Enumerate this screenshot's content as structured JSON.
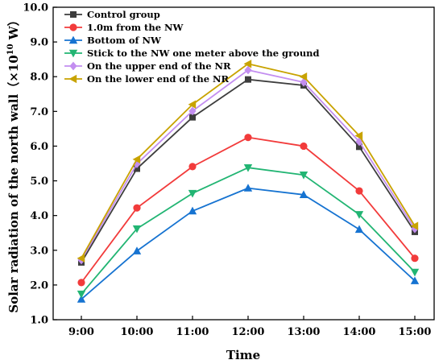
{
  "chart_data": {
    "type": "line",
    "xlabel": "Time",
    "ylabel_main": "Solar radiation of the north wall（×10",
    "ylabel_exp": "10",
    "ylabel_unit": " W）",
    "categories": [
      "9:00",
      "10:00",
      "11:00",
      "12:00",
      "13:00",
      "14:00",
      "15:00"
    ],
    "y_ticks": [
      "1.0",
      "2.0",
      "3.0",
      "4.0",
      "5.0",
      "6.0",
      "7.0",
      "8.0",
      "9.0",
      "10.0"
    ],
    "ylim": [
      1.0,
      10.0
    ],
    "grid": false,
    "legend_position": "top-left",
    "series": [
      {
        "name": "Control group",
        "color": "#3d3d3d",
        "marker": "square",
        "values": [
          2.65,
          5.35,
          6.83,
          7.92,
          7.75,
          5.98,
          3.53
        ]
      },
      {
        "name": "1.0m from the NW",
        "color": "#f23b3b",
        "marker": "circle",
        "values": [
          2.07,
          4.22,
          5.41,
          6.25,
          6.0,
          4.71,
          2.77
        ]
      },
      {
        "name": "Bottom of NW",
        "color": "#1673d1",
        "marker": "triangle-up",
        "values": [
          1.59,
          2.98,
          4.13,
          4.79,
          4.6,
          3.6,
          2.12
        ]
      },
      {
        "name": "Stick to the NW one meter above the ground",
        "color": "#22b573",
        "marker": "triangle-down",
        "values": [
          1.74,
          3.62,
          4.64,
          5.38,
          5.17,
          4.03,
          2.37
        ]
      },
      {
        "name": "On the upper end of the NR",
        "color": "#c38ef0",
        "marker": "diamond",
        "values": [
          2.72,
          5.49,
          7.01,
          8.19,
          7.84,
          6.13,
          3.62
        ]
      },
      {
        "name": "On the lower end of the NR",
        "color": "#c8a300",
        "marker": "triangle-left",
        "values": [
          2.77,
          5.62,
          7.2,
          8.37,
          8.0,
          6.3,
          3.7
        ]
      }
    ]
  }
}
